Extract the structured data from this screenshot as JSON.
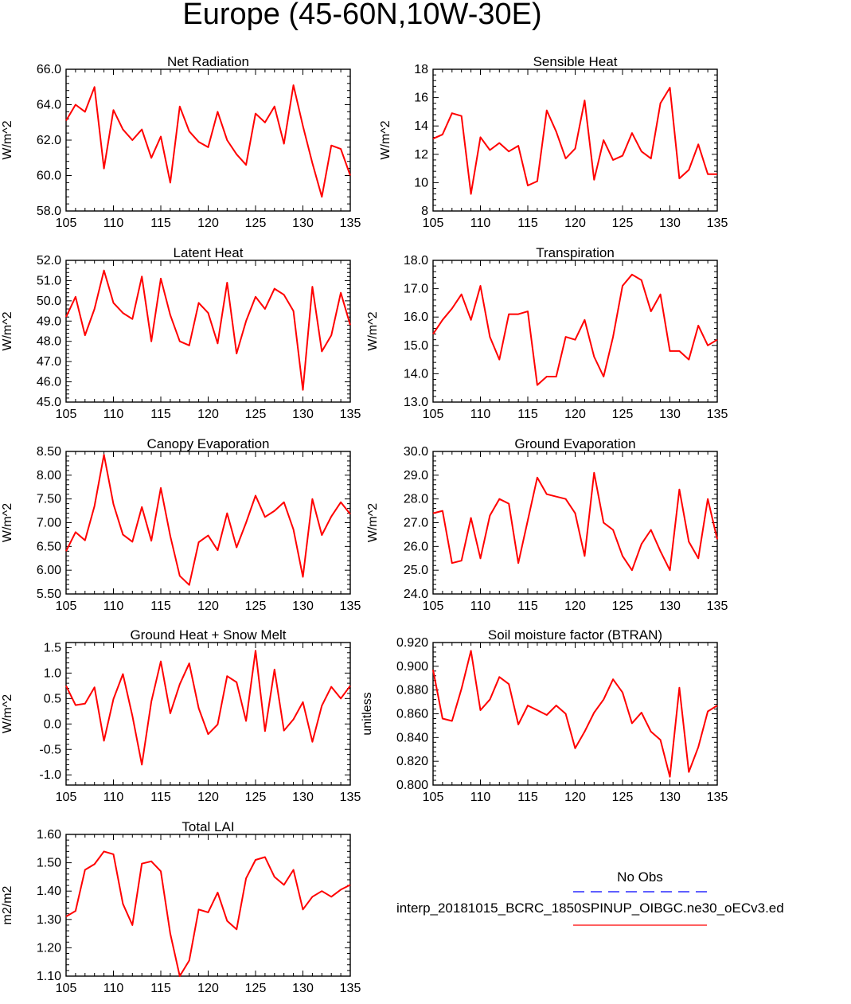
{
  "title": "Europe (45-60N,10W-30E)",
  "colors": {
    "model": "#ff0000",
    "obs": "#0000ff",
    "axis": "#000000"
  },
  "legend": {
    "obs_label": "No Obs",
    "model_label": "interp_20181015_BCRC_1850SPINUP_OIBGC.ne30_oECv3.ed"
  },
  "chart_data": [
    {
      "type": "line",
      "title": "Net Radiation",
      "ylabel": "W/m^2",
      "xlim": [
        105,
        135
      ],
      "ylim": [
        58.0,
        66.0
      ],
      "xticks": [
        "105",
        "110",
        "115",
        "120",
        "125",
        "130",
        "135"
      ],
      "yticks": [
        "58.0",
        "60.0",
        "62.0",
        "64.0",
        "66.0"
      ],
      "ytick_values": [
        58,
        60,
        62,
        64,
        66
      ],
      "x": [
        105,
        106,
        107,
        108,
        109,
        110,
        111,
        112,
        113,
        114,
        115,
        116,
        117,
        118,
        119,
        120,
        121,
        122,
        123,
        124,
        125,
        126,
        127,
        128,
        129,
        130,
        131,
        132,
        133,
        134,
        135
      ],
      "series": [
        {
          "name": "model",
          "values": [
            63.1,
            64.0,
            63.6,
            65.0,
            60.4,
            63.7,
            62.6,
            62.0,
            62.6,
            61.0,
            62.2,
            59.6,
            63.9,
            62.5,
            61.9,
            61.6,
            63.6,
            62.0,
            61.2,
            60.6,
            63.5,
            63.0,
            63.9,
            61.8,
            65.1,
            62.8,
            60.7,
            58.8,
            61.7,
            61.5,
            60.0
          ]
        }
      ]
    },
    {
      "type": "line",
      "title": "Sensible Heat",
      "ylabel": "W/m^2",
      "xlim": [
        105,
        135
      ],
      "ylim": [
        8,
        18
      ],
      "xticks": [
        "105",
        "110",
        "115",
        "120",
        "125",
        "130",
        "135"
      ],
      "yticks": [
        "8",
        "10",
        "12",
        "14",
        "16",
        "18"
      ],
      "ytick_values": [
        8,
        10,
        12,
        14,
        16,
        18
      ],
      "x": [
        105,
        106,
        107,
        108,
        109,
        110,
        111,
        112,
        113,
        114,
        115,
        116,
        117,
        118,
        119,
        120,
        121,
        122,
        123,
        124,
        125,
        126,
        127,
        128,
        129,
        130,
        131,
        132,
        133,
        134,
        135
      ],
      "series": [
        {
          "name": "model",
          "values": [
            13.1,
            13.4,
            14.9,
            14.7,
            9.2,
            13.2,
            12.3,
            12.8,
            12.2,
            12.6,
            9.8,
            10.1,
            15.1,
            13.6,
            11.7,
            12.4,
            15.8,
            10.2,
            13.0,
            11.6,
            11.9,
            13.5,
            12.2,
            11.7,
            15.6,
            16.7,
            10.3,
            10.9,
            12.7,
            10.6,
            10.6
          ]
        }
      ]
    },
    {
      "type": "line",
      "title": "Latent Heat",
      "ylabel": "W/m^2",
      "xlim": [
        105,
        135
      ],
      "ylim": [
        45.0,
        52.0
      ],
      "xticks": [
        "105",
        "110",
        "115",
        "120",
        "125",
        "130",
        "135"
      ],
      "yticks": [
        "45.0",
        "46.0",
        "47.0",
        "48.0",
        "49.0",
        "50.0",
        "51.0",
        "52.0"
      ],
      "ytick_values": [
        45,
        46,
        47,
        48,
        49,
        50,
        51,
        52
      ],
      "x": [
        105,
        106,
        107,
        108,
        109,
        110,
        111,
        112,
        113,
        114,
        115,
        116,
        117,
        118,
        119,
        120,
        121,
        122,
        123,
        124,
        125,
        126,
        127,
        128,
        129,
        130,
        131,
        132,
        133,
        134,
        135
      ],
      "series": [
        {
          "name": "model",
          "values": [
            49.2,
            50.2,
            48.3,
            49.6,
            51.5,
            49.9,
            49.4,
            49.1,
            51.2,
            48.0,
            51.1,
            49.3,
            48.0,
            47.8,
            49.9,
            49.4,
            47.9,
            50.9,
            47.4,
            49.0,
            50.2,
            49.6,
            50.6,
            50.3,
            49.5,
            45.6,
            50.7,
            47.5,
            48.3,
            50.4,
            48.8
          ]
        }
      ]
    },
    {
      "type": "line",
      "title": "Transpiration",
      "ylabel": "W/m^2",
      "xlim": [
        105,
        135
      ],
      "ylim": [
        13.0,
        18.0
      ],
      "xticks": [
        "105",
        "110",
        "115",
        "120",
        "125",
        "130",
        "135"
      ],
      "yticks": [
        "13.0",
        "14.0",
        "15.0",
        "16.0",
        "17.0",
        "18.0"
      ],
      "ytick_values": [
        13,
        14,
        15,
        16,
        17,
        18
      ],
      "x": [
        105,
        106,
        107,
        108,
        109,
        110,
        111,
        112,
        113,
        114,
        115,
        116,
        117,
        118,
        119,
        120,
        121,
        122,
        123,
        124,
        125,
        126,
        127,
        128,
        129,
        130,
        131,
        132,
        133,
        134,
        135
      ],
      "series": [
        {
          "name": "model",
          "values": [
            15.4,
            15.9,
            16.3,
            16.8,
            15.9,
            17.1,
            15.3,
            14.5,
            16.1,
            16.1,
            16.2,
            13.6,
            13.9,
            13.9,
            15.3,
            15.2,
            15.9,
            14.6,
            13.9,
            15.3,
            17.1,
            17.5,
            17.3,
            16.2,
            16.8,
            14.8,
            14.8,
            14.5,
            15.7,
            15.0,
            15.2
          ]
        }
      ]
    },
    {
      "type": "line",
      "title": "Canopy Evaporation",
      "ylabel": "W/m^2",
      "xlim": [
        105,
        135
      ],
      "ylim": [
        5.5,
        8.5
      ],
      "xticks": [
        "105",
        "110",
        "115",
        "120",
        "125",
        "130",
        "135"
      ],
      "yticks": [
        "5.50",
        "6.00",
        "6.50",
        "7.00",
        "7.50",
        "8.00",
        "8.50"
      ],
      "ytick_values": [
        5.5,
        6.0,
        6.5,
        7.0,
        7.5,
        8.0,
        8.5
      ],
      "x": [
        105,
        106,
        107,
        108,
        109,
        110,
        111,
        112,
        113,
        114,
        115,
        116,
        117,
        118,
        119,
        120,
        121,
        122,
        123,
        124,
        125,
        126,
        127,
        128,
        129,
        130,
        131,
        132,
        133,
        134,
        135
      ],
      "series": [
        {
          "name": "model",
          "values": [
            6.4,
            6.8,
            6.63,
            7.35,
            8.43,
            7.39,
            6.75,
            6.6,
            7.33,
            6.62,
            7.73,
            6.72,
            5.88,
            5.69,
            6.59,
            6.73,
            6.42,
            7.2,
            6.48,
            7.0,
            7.57,
            7.12,
            7.25,
            7.43,
            6.86,
            5.86,
            7.5,
            6.74,
            7.13,
            7.43,
            7.18
          ]
        }
      ]
    },
    {
      "type": "line",
      "title": "Ground Evaporation",
      "ylabel": "W/m^2",
      "xlim": [
        105,
        135
      ],
      "ylim": [
        24.0,
        30.0
      ],
      "xticks": [
        "105",
        "110",
        "115",
        "120",
        "125",
        "130",
        "135"
      ],
      "yticks": [
        "24.0",
        "25.0",
        "26.0",
        "27.0",
        "28.0",
        "29.0",
        "30.0"
      ],
      "ytick_values": [
        24,
        25,
        26,
        27,
        28,
        29,
        30
      ],
      "x": [
        105,
        106,
        107,
        108,
        109,
        110,
        111,
        112,
        113,
        114,
        115,
        116,
        117,
        118,
        119,
        120,
        121,
        122,
        123,
        124,
        125,
        126,
        127,
        128,
        129,
        130,
        131,
        132,
        133,
        134,
        135
      ],
      "series": [
        {
          "name": "model",
          "values": [
            27.4,
            27.5,
            25.3,
            25.4,
            27.2,
            25.5,
            27.3,
            28.0,
            27.8,
            25.3,
            27.1,
            28.9,
            28.2,
            28.1,
            28.0,
            27.4,
            25.6,
            29.1,
            27.0,
            26.7,
            25.6,
            25.0,
            26.1,
            26.7,
            25.8,
            25.0,
            28.4,
            26.2,
            25.5,
            28.0,
            26.3
          ]
        }
      ]
    },
    {
      "type": "line",
      "title": "Ground Heat + Snow Melt",
      "ylabel": "W/m^2",
      "xlim": [
        105,
        135
      ],
      "ylim": [
        -1.2,
        1.6
      ],
      "xticks": [
        "105",
        "110",
        "115",
        "120",
        "125",
        "130",
        "135"
      ],
      "yticks": [
        "-1.0",
        "-0.5",
        "0.0",
        "0.5",
        "1.0",
        "1.5"
      ],
      "ytick_values": [
        -1.0,
        -0.5,
        0.0,
        0.5,
        1.0,
        1.5
      ],
      "x": [
        105,
        106,
        107,
        108,
        109,
        110,
        111,
        112,
        113,
        114,
        115,
        116,
        117,
        118,
        119,
        120,
        121,
        122,
        123,
        124,
        125,
        126,
        127,
        128,
        129,
        130,
        131,
        132,
        133,
        134,
        135
      ],
      "series": [
        {
          "name": "model",
          "values": [
            0.75,
            0.37,
            0.4,
            0.72,
            -0.33,
            0.49,
            0.98,
            0.16,
            -0.8,
            0.44,
            1.23,
            0.21,
            0.78,
            1.19,
            0.31,
            -0.2,
            -0.01,
            0.94,
            0.82,
            0.06,
            1.44,
            -0.14,
            1.07,
            -0.13,
            0.09,
            0.43,
            -0.35,
            0.36,
            0.73,
            0.5,
            0.75
          ]
        }
      ]
    },
    {
      "type": "line",
      "title": "Soil moisture factor (BTRAN)",
      "ylabel": "unitless",
      "xlim": [
        105,
        135
      ],
      "ylim": [
        0.8,
        0.92
      ],
      "xticks": [
        "105",
        "110",
        "115",
        "120",
        "125",
        "130",
        "135"
      ],
      "yticks": [
        "0.800",
        "0.820",
        "0.840",
        "0.860",
        "0.880",
        "0.900",
        "0.920"
      ],
      "ytick_values": [
        0.8,
        0.82,
        0.84,
        0.86,
        0.88,
        0.9,
        0.92
      ],
      "x": [
        105,
        106,
        107,
        108,
        109,
        110,
        111,
        112,
        113,
        114,
        115,
        116,
        117,
        118,
        119,
        120,
        121,
        122,
        123,
        124,
        125,
        126,
        127,
        128,
        129,
        130,
        131,
        132,
        133,
        134,
        135
      ],
      "series": [
        {
          "name": "model",
          "values": [
            0.897,
            0.856,
            0.854,
            0.881,
            0.913,
            0.863,
            0.872,
            0.891,
            0.885,
            0.851,
            0.867,
            0.863,
            0.859,
            0.867,
            0.86,
            0.831,
            0.845,
            0.861,
            0.872,
            0.889,
            0.878,
            0.852,
            0.861,
            0.845,
            0.838,
            0.807,
            0.882,
            0.811,
            0.832,
            0.862,
            0.867
          ]
        }
      ]
    },
    {
      "type": "line",
      "title": "Total LAI",
      "ylabel": "m2/m2",
      "xlim": [
        105,
        135
      ],
      "ylim": [
        1.1,
        1.6
      ],
      "xticks": [
        "105",
        "110",
        "115",
        "120",
        "125",
        "130",
        "135"
      ],
      "yticks": [
        "1.10",
        "1.20",
        "1.30",
        "1.40",
        "1.50",
        "1.60"
      ],
      "ytick_values": [
        1.1,
        1.2,
        1.3,
        1.4,
        1.5,
        1.6
      ],
      "x": [
        105,
        106,
        107,
        108,
        109,
        110,
        111,
        112,
        113,
        114,
        115,
        116,
        117,
        118,
        119,
        120,
        121,
        122,
        123,
        124,
        125,
        126,
        127,
        128,
        129,
        130,
        131,
        132,
        133,
        134,
        135
      ],
      "series": [
        {
          "name": "model",
          "values": [
            1.31,
            1.33,
            1.475,
            1.495,
            1.54,
            1.53,
            1.355,
            1.28,
            1.497,
            1.505,
            1.47,
            1.25,
            1.1,
            1.155,
            1.335,
            1.325,
            1.395,
            1.295,
            1.265,
            1.445,
            1.51,
            1.52,
            1.45,
            1.422,
            1.475,
            1.335,
            1.38,
            1.4,
            1.38,
            1.405,
            1.422
          ]
        }
      ]
    }
  ]
}
